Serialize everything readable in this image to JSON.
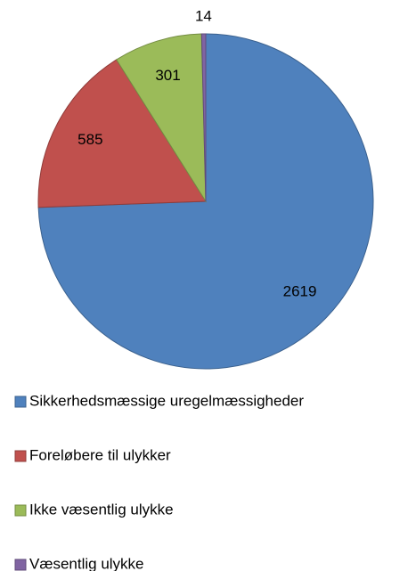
{
  "chart_data": {
    "type": "pie",
    "categories": [
      "Sikkerhedsmæssige uregelmæssigheder",
      "Foreløbere til ulykker",
      "Ikke væsentlig ulykke",
      "Væsentlig ulykke"
    ],
    "values": [
      2619,
      585,
      301,
      14
    ],
    "colors": [
      "#4f81bd",
      "#c0504d",
      "#9bbb59",
      "#8064a2"
    ],
    "legend": "bottom"
  }
}
